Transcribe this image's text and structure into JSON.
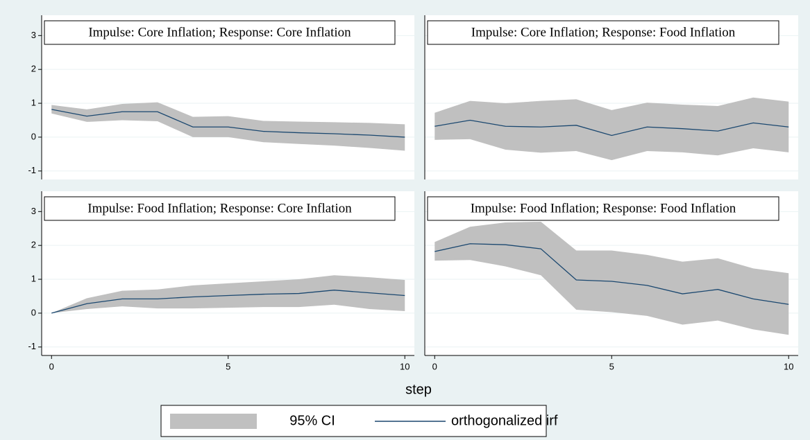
{
  "chart_data": [
    {
      "type": "line",
      "title": "Impulse: Core Inflation; Response: Core Inflation",
      "x": [
        0,
        1,
        2,
        3,
        4,
        5,
        6,
        7,
        8,
        9,
        10
      ],
      "series": [
        {
          "color": "#1a476f",
          "values": [
            0.82,
            0.62,
            0.75,
            0.75,
            0.3,
            0.3,
            0.17,
            0.13,
            0.1,
            0.06,
            0.0
          ]
        }
      ],
      "band": {
        "color": "#c0c0c0",
        "lower": [
          0.7,
          0.45,
          0.5,
          0.47,
          0.0,
          0.0,
          -0.15,
          -0.2,
          -0.25,
          -0.32,
          -0.4
        ],
        "upper": [
          0.95,
          0.82,
          0.98,
          1.03,
          0.6,
          0.62,
          0.48,
          0.46,
          0.44,
          0.42,
          0.38
        ]
      },
      "xlim": [
        -0.28,
        10.27
      ],
      "ylim": [
        -1.25,
        3.6
      ],
      "yticks": [
        -1,
        0,
        1,
        2,
        3
      ],
      "grid": true
    },
    {
      "type": "line",
      "title": "Impulse: Core Inflation; Response: Food Inflation",
      "x": [
        0,
        1,
        2,
        3,
        4,
        5,
        6,
        7,
        8,
        9,
        10
      ],
      "series": [
        {
          "color": "#1a476f",
          "values": [
            0.32,
            0.5,
            0.32,
            0.3,
            0.35,
            0.05,
            0.3,
            0.25,
            0.18,
            0.42,
            0.3
          ]
        }
      ],
      "band": {
        "color": "#c0c0c0",
        "lower": [
          -0.08,
          -0.06,
          -0.37,
          -0.46,
          -0.41,
          -0.68,
          -0.41,
          -0.45,
          -0.54,
          -0.33,
          -0.45
        ],
        "upper": [
          0.72,
          1.07,
          1.0,
          1.07,
          1.12,
          0.8,
          1.02,
          0.96,
          0.92,
          1.17,
          1.05
        ]
      },
      "xlim": [
        -0.28,
        10.27
      ],
      "ylim": [
        -1.25,
        3.6
      ],
      "yticks": [
        -1,
        0,
        1,
        2,
        3
      ],
      "grid": true
    },
    {
      "type": "line",
      "title": "Impulse: Food Inflation; Response: Core Inflation",
      "x": [
        0,
        1,
        2,
        3,
        4,
        5,
        6,
        7,
        8,
        9,
        10
      ],
      "series": [
        {
          "color": "#1a476f",
          "values": [
            0,
            0.28,
            0.42,
            0.42,
            0.48,
            0.52,
            0.56,
            0.58,
            0.68,
            0.6,
            0.52
          ]
        }
      ],
      "band": {
        "color": "#c0c0c0",
        "lower": [
          0,
          0.12,
          0.2,
          0.14,
          0.14,
          0.16,
          0.18,
          0.18,
          0.25,
          0.12,
          0.06
        ],
        "upper": [
          0,
          0.44,
          0.66,
          0.7,
          0.82,
          0.88,
          0.94,
          1.0,
          1.12,
          1.06,
          0.98
        ]
      },
      "xlim": [
        -0.28,
        10.27
      ],
      "ylim": [
        -1.25,
        3.6
      ],
      "yticks": [
        -1,
        0,
        1,
        2,
        3
      ],
      "xticks": [
        0,
        5,
        10
      ],
      "grid": true
    },
    {
      "type": "line",
      "title": "Impulse: Food Inflation; Response: Food Inflation",
      "x": [
        0,
        1,
        2,
        3,
        4,
        5,
        6,
        7,
        8,
        9,
        10
      ],
      "series": [
        {
          "color": "#1a476f",
          "values": [
            1.82,
            2.05,
            2.02,
            1.9,
            0.98,
            0.94,
            0.82,
            0.57,
            0.7,
            0.42,
            0.26
          ]
        }
      ],
      "band": {
        "color": "#c0c0c0",
        "lower": [
          1.55,
          1.57,
          1.38,
          1.12,
          0.1,
          0.03,
          -0.08,
          -0.34,
          -0.22,
          -0.48,
          -0.64
        ],
        "upper": [
          2.1,
          2.55,
          2.68,
          2.7,
          1.85,
          1.85,
          1.72,
          1.52,
          1.62,
          1.32,
          1.18
        ]
      },
      "xlim": [
        -0.28,
        10.27
      ],
      "ylim": [
        -1.25,
        3.6
      ],
      "yticks": [
        -1,
        0,
        1,
        2,
        3
      ],
      "xticks": [
        0,
        5,
        10
      ],
      "grid": true
    }
  ],
  "xlabel": "step",
  "legend": {
    "band": "95% CI",
    "line": "orthogonalized irf"
  }
}
